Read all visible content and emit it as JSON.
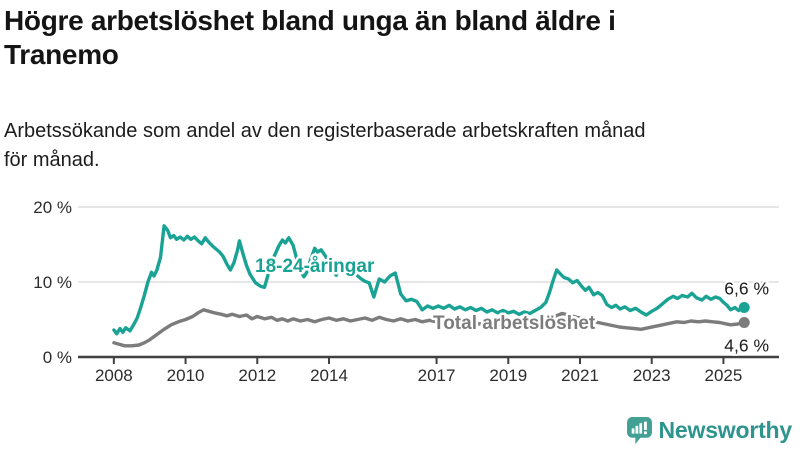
{
  "header": {
    "title_lines": [
      "Högre arbetslöshet bland unga än bland äldre i",
      "Tranemo"
    ],
    "subtitle_lines": [
      "Arbetssökande som andel av den registerbaserade arbetskraften månad",
      "för månad."
    ]
  },
  "chart_data": {
    "type": "line",
    "x_axis": {
      "range": [
        2007.0,
        2026.55
      ],
      "ticks": [
        2008,
        2010,
        2012,
        2014,
        2017,
        2019,
        2021,
        2023,
        2025
      ],
      "tick_labels": [
        "2008",
        "2010",
        "2012",
        "2014",
        "2017",
        "2019",
        "2021",
        "2023",
        "2025"
      ]
    },
    "y_axis": {
      "range": [
        0,
        21.5
      ],
      "ticks": [
        0,
        10,
        20
      ],
      "tick_labels": [
        "0 %",
        "10 %",
        "20 %"
      ],
      "unit": "%"
    },
    "grid": "horizontal",
    "series": [
      {
        "name": "Total arbetslöshet",
        "color": "#7C7C7C",
        "end_label": "4,6 %",
        "last_value": 4.6,
        "points": [
          [
            2008.0,
            1.9
          ],
          [
            2008.15,
            1.7
          ],
          [
            2008.3,
            1.5
          ],
          [
            2008.5,
            1.5
          ],
          [
            2008.7,
            1.6
          ],
          [
            2008.85,
            1.9
          ],
          [
            2009.0,
            2.3
          ],
          [
            2009.2,
            3.0
          ],
          [
            2009.4,
            3.7
          ],
          [
            2009.6,
            4.3
          ],
          [
            2009.8,
            4.7
          ],
          [
            2010.0,
            5.0
          ],
          [
            2010.2,
            5.4
          ],
          [
            2010.35,
            5.9
          ],
          [
            2010.5,
            6.3
          ],
          [
            2010.65,
            6.1
          ],
          [
            2010.8,
            5.9
          ],
          [
            2011.0,
            5.7
          ],
          [
            2011.15,
            5.5
          ],
          [
            2011.3,
            5.7
          ],
          [
            2011.5,
            5.4
          ],
          [
            2011.7,
            5.6
          ],
          [
            2011.85,
            5.1
          ],
          [
            2012.0,
            5.4
          ],
          [
            2012.2,
            5.1
          ],
          [
            2012.4,
            5.3
          ],
          [
            2012.55,
            4.9
          ],
          [
            2012.7,
            5.1
          ],
          [
            2012.85,
            4.8
          ],
          [
            2013.0,
            5.1
          ],
          [
            2013.2,
            4.8
          ],
          [
            2013.4,
            5.0
          ],
          [
            2013.6,
            4.7
          ],
          [
            2013.8,
            5.0
          ],
          [
            2014.0,
            5.2
          ],
          [
            2014.2,
            4.9
          ],
          [
            2014.4,
            5.1
          ],
          [
            2014.6,
            4.8
          ],
          [
            2014.8,
            5.0
          ],
          [
            2015.0,
            5.2
          ],
          [
            2015.2,
            4.9
          ],
          [
            2015.4,
            5.3
          ],
          [
            2015.6,
            5.0
          ],
          [
            2015.8,
            4.8
          ],
          [
            2016.0,
            5.1
          ],
          [
            2016.2,
            4.8
          ],
          [
            2016.4,
            5.0
          ],
          [
            2016.6,
            4.7
          ],
          [
            2016.8,
            4.9
          ],
          [
            2017.0,
            4.7
          ],
          [
            2017.2,
            4.9
          ],
          [
            2017.4,
            4.6
          ],
          [
            2017.6,
            4.8
          ],
          [
            2017.8,
            4.5
          ],
          [
            2018.0,
            4.7
          ],
          [
            2018.2,
            4.4
          ],
          [
            2018.4,
            4.6
          ],
          [
            2018.6,
            4.3
          ],
          [
            2018.8,
            4.5
          ],
          [
            2019.0,
            4.3
          ],
          [
            2019.2,
            4.4
          ],
          [
            2019.4,
            4.1
          ],
          [
            2019.6,
            4.3
          ],
          [
            2019.8,
            4.5
          ],
          [
            2020.0,
            4.7
          ],
          [
            2020.2,
            5.2
          ],
          [
            2020.4,
            5.6
          ],
          [
            2020.5,
            5.8
          ],
          [
            2020.7,
            5.6
          ],
          [
            2020.9,
            5.3
          ],
          [
            2021.1,
            5.1
          ],
          [
            2021.3,
            4.9
          ],
          [
            2021.5,
            4.6
          ],
          [
            2021.7,
            4.4
          ],
          [
            2021.9,
            4.2
          ],
          [
            2022.1,
            4.0
          ],
          [
            2022.3,
            3.9
          ],
          [
            2022.5,
            3.8
          ],
          [
            2022.7,
            3.7
          ],
          [
            2022.9,
            3.9
          ],
          [
            2023.1,
            4.1
          ],
          [
            2023.3,
            4.3
          ],
          [
            2023.5,
            4.5
          ],
          [
            2023.7,
            4.7
          ],
          [
            2023.9,
            4.6
          ],
          [
            2024.1,
            4.8
          ],
          [
            2024.3,
            4.7
          ],
          [
            2024.5,
            4.8
          ],
          [
            2024.7,
            4.7
          ],
          [
            2024.9,
            4.6
          ],
          [
            2025.0,
            4.5
          ],
          [
            2025.2,
            4.3
          ],
          [
            2025.4,
            4.4
          ],
          [
            2025.58,
            4.6
          ]
        ]
      },
      {
        "name": "18-24-åringar",
        "color": "#1AA394",
        "end_label": "6,6 %",
        "last_value": 6.6,
        "points": [
          [
            2008.0,
            3.6
          ],
          [
            2008.08,
            3.1
          ],
          [
            2008.17,
            3.8
          ],
          [
            2008.25,
            3.3
          ],
          [
            2008.33,
            3.9
          ],
          [
            2008.45,
            3.5
          ],
          [
            2008.55,
            4.3
          ],
          [
            2008.65,
            5.2
          ],
          [
            2008.75,
            6.6
          ],
          [
            2008.85,
            8.2
          ],
          [
            2008.95,
            10.0
          ],
          [
            2009.05,
            11.3
          ],
          [
            2009.12,
            10.8
          ],
          [
            2009.2,
            11.6
          ],
          [
            2009.3,
            13.3
          ],
          [
            2009.4,
            17.5
          ],
          [
            2009.5,
            16.9
          ],
          [
            2009.58,
            15.9
          ],
          [
            2009.67,
            16.2
          ],
          [
            2009.75,
            15.7
          ],
          [
            2009.85,
            16.0
          ],
          [
            2009.95,
            15.6
          ],
          [
            2010.05,
            16.1
          ],
          [
            2010.15,
            15.7
          ],
          [
            2010.25,
            16.0
          ],
          [
            2010.35,
            15.5
          ],
          [
            2010.45,
            15.1
          ],
          [
            2010.55,
            15.9
          ],
          [
            2010.65,
            15.3
          ],
          [
            2010.75,
            14.8
          ],
          [
            2010.85,
            14.4
          ],
          [
            2010.95,
            14.0
          ],
          [
            2011.05,
            13.4
          ],
          [
            2011.15,
            12.4
          ],
          [
            2011.25,
            11.6
          ],
          [
            2011.35,
            12.6
          ],
          [
            2011.45,
            14.3
          ],
          [
            2011.5,
            15.5
          ],
          [
            2011.6,
            13.8
          ],
          [
            2011.7,
            12.2
          ],
          [
            2011.8,
            11.0
          ],
          [
            2011.95,
            9.9
          ],
          [
            2012.1,
            9.4
          ],
          [
            2012.2,
            9.3
          ],
          [
            2012.32,
            11.3
          ],
          [
            2012.45,
            13.2
          ],
          [
            2012.6,
            14.8
          ],
          [
            2012.7,
            15.6
          ],
          [
            2012.78,
            15.2
          ],
          [
            2012.88,
            15.9
          ],
          [
            2013.0,
            14.9
          ],
          [
            2013.1,
            13.1
          ],
          [
            2013.2,
            11.5
          ],
          [
            2013.3,
            10.7
          ],
          [
            2013.38,
            11.3
          ],
          [
            2013.48,
            12.9
          ],
          [
            2013.6,
            14.5
          ],
          [
            2013.68,
            14.0
          ],
          [
            2013.78,
            14.3
          ],
          [
            2013.88,
            13.6
          ],
          [
            2014.0,
            12.7
          ],
          [
            2014.1,
            11.7
          ],
          [
            2014.2,
            10.9
          ],
          [
            2014.32,
            12.3
          ],
          [
            2014.45,
            12.0
          ],
          [
            2014.6,
            11.4
          ],
          [
            2014.75,
            11.0
          ],
          [
            2014.9,
            10.4
          ],
          [
            2015.0,
            10.1
          ],
          [
            2015.12,
            9.9
          ],
          [
            2015.25,
            8.0
          ],
          [
            2015.4,
            10.4
          ],
          [
            2015.55,
            10.0
          ],
          [
            2015.7,
            10.8
          ],
          [
            2015.85,
            11.2
          ],
          [
            2016.0,
            8.4
          ],
          [
            2016.15,
            7.5
          ],
          [
            2016.3,
            7.7
          ],
          [
            2016.45,
            7.4
          ],
          [
            2016.6,
            6.3
          ],
          [
            2016.75,
            6.8
          ],
          [
            2016.9,
            6.5
          ],
          [
            2017.05,
            6.8
          ],
          [
            2017.2,
            6.5
          ],
          [
            2017.35,
            6.9
          ],
          [
            2017.5,
            6.4
          ],
          [
            2017.65,
            6.7
          ],
          [
            2017.8,
            6.3
          ],
          [
            2017.95,
            6.6
          ],
          [
            2018.1,
            6.2
          ],
          [
            2018.25,
            6.5
          ],
          [
            2018.4,
            6.0
          ],
          [
            2018.55,
            6.3
          ],
          [
            2018.7,
            5.9
          ],
          [
            2018.85,
            6.2
          ],
          [
            2019.0,
            5.9
          ],
          [
            2019.15,
            6.1
          ],
          [
            2019.3,
            5.7
          ],
          [
            2019.45,
            6.0
          ],
          [
            2019.6,
            5.8
          ],
          [
            2019.75,
            6.2
          ],
          [
            2019.9,
            6.6
          ],
          [
            2020.05,
            7.3
          ],
          [
            2020.15,
            8.6
          ],
          [
            2020.25,
            10.2
          ],
          [
            2020.35,
            11.6
          ],
          [
            2020.45,
            11.1
          ],
          [
            2020.55,
            10.6
          ],
          [
            2020.68,
            10.4
          ],
          [
            2020.8,
            9.9
          ],
          [
            2020.92,
            10.2
          ],
          [
            2021.05,
            9.4
          ],
          [
            2021.15,
            8.9
          ],
          [
            2021.25,
            9.3
          ],
          [
            2021.38,
            8.3
          ],
          [
            2021.5,
            8.6
          ],
          [
            2021.62,
            8.2
          ],
          [
            2021.75,
            7.0
          ],
          [
            2021.88,
            6.6
          ],
          [
            2022.0,
            6.9
          ],
          [
            2022.12,
            6.4
          ],
          [
            2022.25,
            6.7
          ],
          [
            2022.4,
            6.2
          ],
          [
            2022.55,
            6.5
          ],
          [
            2022.7,
            6.0
          ],
          [
            2022.85,
            5.6
          ],
          [
            2023.0,
            6.1
          ],
          [
            2023.15,
            6.5
          ],
          [
            2023.3,
            7.1
          ],
          [
            2023.45,
            7.7
          ],
          [
            2023.6,
            8.1
          ],
          [
            2023.72,
            7.8
          ],
          [
            2023.85,
            8.2
          ],
          [
            2024.0,
            8.0
          ],
          [
            2024.12,
            8.5
          ],
          [
            2024.25,
            7.9
          ],
          [
            2024.4,
            7.6
          ],
          [
            2024.52,
            8.1
          ],
          [
            2024.65,
            7.7
          ],
          [
            2024.78,
            8.0
          ],
          [
            2024.9,
            7.8
          ],
          [
            2025.0,
            7.3
          ],
          [
            2025.1,
            6.9
          ],
          [
            2025.2,
            6.3
          ],
          [
            2025.32,
            6.6
          ],
          [
            2025.42,
            6.2
          ],
          [
            2025.5,
            6.4
          ],
          [
            2025.58,
            6.6
          ]
        ]
      }
    ],
    "colors": {
      "youth_line": "#1AA394",
      "total_line": "#7C7C7C",
      "gridline": "#d8d8d8",
      "axis_line": "#404040",
      "axis_text": "#2d2d2d",
      "value_label_text": "#1c1c1c"
    }
  },
  "branding": {
    "logo_text": "Newsworthy",
    "logo_color": "#2D948E",
    "logo_icon": "bar-chart-speech-bubble-icon",
    "logo_icon_color": "#43A094"
  }
}
